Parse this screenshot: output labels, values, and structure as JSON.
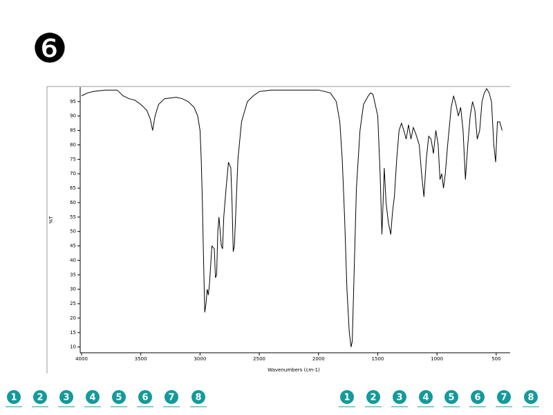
{
  "header": {
    "badge": "❻"
  },
  "nav_left": [
    "1",
    "2",
    "3",
    "4",
    "5",
    "6",
    "7",
    "8"
  ],
  "nav_right": [
    "1",
    "2",
    "3",
    "4",
    "5",
    "6",
    "7",
    "8"
  ],
  "chart_data": {
    "type": "line",
    "x_label": "Wavenumbers (cm-1)",
    "y_label": "%T",
    "color": "#000000",
    "x": [
      4000,
      3950,
      3900,
      3800,
      3700,
      3650,
      3600,
      3550,
      3500,
      3450,
      3420,
      3400,
      3380,
      3350,
      3300,
      3200,
      3150,
      3100,
      3050,
      3020,
      3000,
      2990,
      2980,
      2970,
      2960,
      2950,
      2940,
      2930,
      2920,
      2900,
      2880,
      2870,
      2860,
      2850,
      2840,
      2830,
      2820,
      2810,
      2800,
      2780,
      2760,
      2740,
      2730,
      2720,
      2710,
      2700,
      2680,
      2650,
      2600,
      2550,
      2500,
      2400,
      2200,
      2000,
      1900,
      1850,
      1820,
      1800,
      1780,
      1760,
      1740,
      1725,
      1715,
      1700,
      1680,
      1650,
      1620,
      1580,
      1560,
      1540,
      1500,
      1480,
      1465,
      1455,
      1445,
      1430,
      1410,
      1390,
      1375,
      1360,
      1340,
      1320,
      1300,
      1280,
      1260,
      1240,
      1220,
      1200,
      1180,
      1150,
      1130,
      1110,
      1090,
      1070,
      1050,
      1030,
      1010,
      990,
      975,
      960,
      945,
      930,
      910,
      880,
      860,
      840,
      820,
      800,
      780,
      760,
      740,
      720,
      700,
      680,
      660,
      640,
      620,
      600,
      580,
      560,
      540,
      520,
      505,
      490,
      470,
      450
    ],
    "values": [
      97,
      98,
      98.5,
      99,
      99,
      97,
      96,
      95.5,
      94,
      92,
      89,
      85,
      90,
      94,
      96,
      96.5,
      96,
      95,
      93,
      90,
      85,
      75,
      60,
      40,
      22,
      25,
      30,
      28,
      32,
      45,
      44,
      34,
      35,
      50,
      55,
      50,
      45,
      44,
      55,
      65,
      74,
      72,
      60,
      43,
      45,
      55,
      75,
      88,
      95,
      97,
      98.5,
      99,
      99,
      99,
      98,
      95,
      88,
      75,
      55,
      30,
      15,
      10,
      12,
      35,
      65,
      85,
      94,
      97,
      98,
      97.5,
      90,
      70,
      49,
      60,
      72,
      60,
      53,
      49,
      57,
      62,
      75,
      85,
      87.5,
      85,
      82,
      87,
      82,
      86,
      84,
      80,
      70,
      62,
      75,
      83,
      82,
      77,
      85,
      80,
      68,
      70,
      65,
      70,
      80,
      93,
      97,
      94,
      90,
      93,
      85,
      68,
      80,
      90,
      95,
      92,
      82,
      85,
      95,
      98,
      99.5,
      98,
      95,
      80,
      74,
      88,
      88,
      85
    ],
    "xlim": [
      4000,
      400
    ],
    "ylim": [
      8,
      100
    ],
    "xticks": [
      4000,
      3500,
      3000,
      2500,
      2000,
      1500,
      1000,
      500
    ],
    "yticks": [
      10,
      15,
      20,
      25,
      30,
      35,
      40,
      45,
      50,
      55,
      60,
      65,
      70,
      75,
      80,
      85,
      90,
      95
    ]
  }
}
